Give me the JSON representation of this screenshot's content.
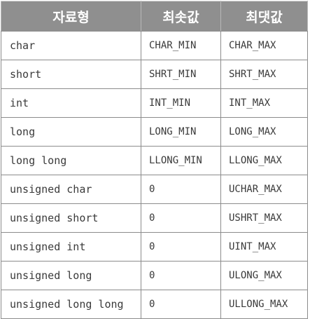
{
  "headers": [
    "자료형",
    "최솟값",
    "최댓값"
  ],
  "rows": [
    {
      "type": "char",
      "min": "CHAR_MIN",
      "max": "CHAR_MAX"
    },
    {
      "type": "short",
      "min": "SHRT_MIN",
      "max": "SHRT_MAX"
    },
    {
      "type": "int",
      "min": "INT_MIN",
      "max": "INT_MAX"
    },
    {
      "type": "long",
      "min": "LONG_MIN",
      "max": "LONG_MAX"
    },
    {
      "type": "long long",
      "min": "LLONG_MIN",
      "max": "LLONG_MAX"
    },
    {
      "type": "unsigned char",
      "min": "0",
      "max": "UCHAR_MAX"
    },
    {
      "type": "unsigned short",
      "min": "0",
      "max": "USHRT_MAX"
    },
    {
      "type": "unsigned int",
      "min": "0",
      "max": "UINT_MAX"
    },
    {
      "type": "unsigned long",
      "min": "0",
      "max": "ULONG_MAX"
    },
    {
      "type": "unsigned long long",
      "min": "0",
      "max": "ULLONG_MAX"
    }
  ],
  "colors": {
    "header_bg": "#8f8f8f",
    "header_text": "#ffffff",
    "border": "#8c8c8c",
    "cell_text": "#3a3a3a"
  }
}
